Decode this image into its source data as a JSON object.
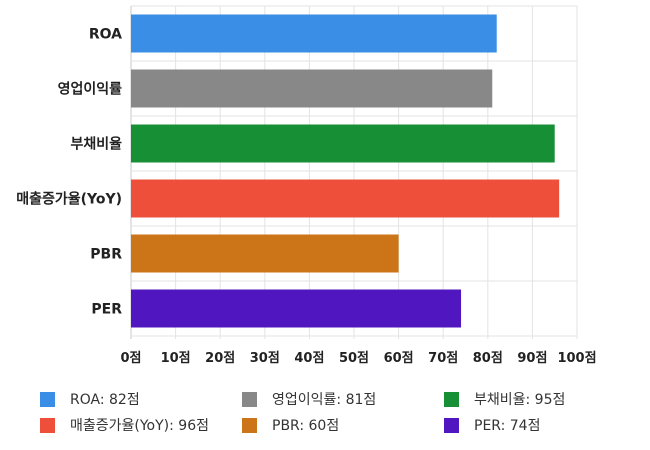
{
  "chart_data": {
    "type": "bar",
    "orientation": "horizontal",
    "categories": [
      "ROA",
      "영업이익률",
      "부채비율",
      "매출증가율(YoY)",
      "PBR",
      "PER"
    ],
    "values": [
      82,
      81,
      95,
      96,
      60,
      74
    ],
    "colors": [
      "#3a8ee6",
      "#888888",
      "#178f35",
      "#ed4f3a",
      "#cc7418",
      "#5016bf"
    ],
    "x_ticks": [
      "0점",
      "10점",
      "20점",
      "30점",
      "40점",
      "50점",
      "60점",
      "70점",
      "80점",
      "90점",
      "100점"
    ],
    "xlim": [
      0,
      100
    ],
    "grid": true,
    "legend_position": "bottom",
    "legend": [
      {
        "label": "ROA: 82점",
        "color": "#3a8ee6"
      },
      {
        "label": "영업이익률: 81점",
        "color": "#888888"
      },
      {
        "label": "부채비율: 95점",
        "color": "#178f35"
      },
      {
        "label": "매출증가율(YoY): 96점",
        "color": "#ed4f3a"
      },
      {
        "label": "PBR: 60점",
        "color": "#cc7418"
      },
      {
        "label": "PER: 74점",
        "color": "#5016bf"
      }
    ]
  }
}
